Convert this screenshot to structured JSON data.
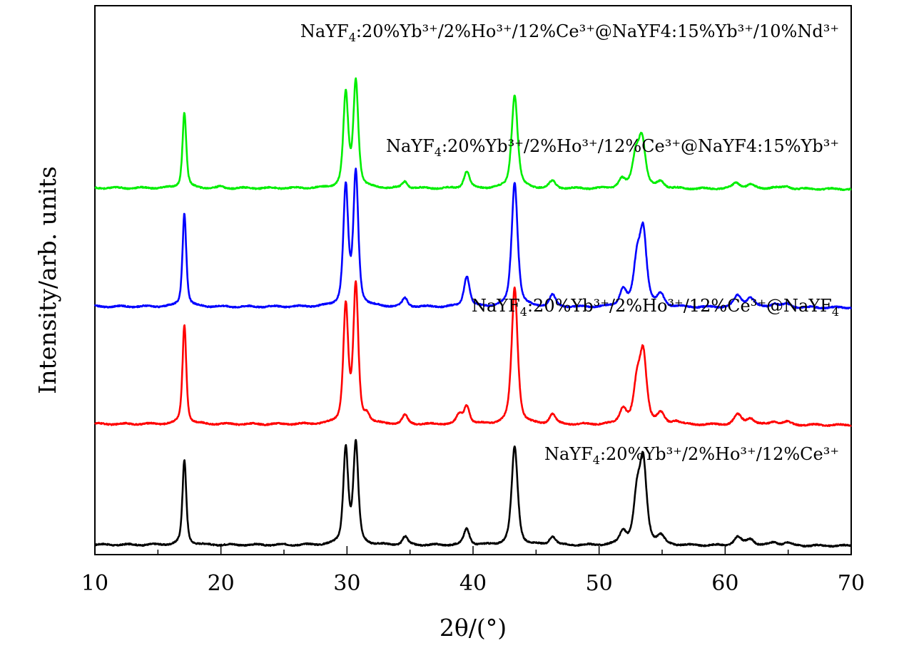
{
  "chart_data": {
    "type": "line",
    "title": "",
    "xlabel": "2θ/(°)",
    "ylabel": "Intensity/arb. units",
    "xlim": [
      10,
      70
    ],
    "ylim": [
      0,
      100
    ],
    "xticks": [
      "10",
      "20",
      "30",
      "40",
      "50",
      "60",
      "70"
    ],
    "y_ticks_shown": false,
    "grid": false,
    "legend": "text labels above each trace",
    "series": [
      {
        "label_main": "NaYF",
        "label_sub": "4",
        "label_rest": ":20%Yb³⁺/2%Ho³⁺/12%Ce³⁺",
        "color": "#000000",
        "baseline": 1.8,
        "peaks": [
          [
            17.1,
            15.5
          ],
          [
            29.9,
            17.5
          ],
          [
            30.7,
            18.2
          ],
          [
            34.6,
            1.5
          ],
          [
            39.5,
            3.0
          ],
          [
            43.3,
            18.0
          ],
          [
            46.3,
            1.6
          ],
          [
            51.9,
            2.3
          ],
          [
            53.0,
            8.3
          ],
          [
            53.5,
            14.6
          ],
          [
            54.9,
            1.5
          ],
          [
            61.0,
            1.5
          ],
          [
            62.0,
            1.2
          ],
          [
            63.9,
            0.6
          ],
          [
            64.9,
            0.5
          ]
        ]
      },
      {
        "label_main": "NaYF",
        "label_sub": "4",
        "label_rest": ":20%Yb³⁺/2%Ho³⁺/12%Ce³⁺@NaYF",
        "label_sub2": "4",
        "color": "#ff0000",
        "baseline": 23.8,
        "peaks": [
          [
            17.1,
            18.2
          ],
          [
            29.9,
            21.4
          ],
          [
            30.7,
            25.0
          ],
          [
            31.6,
            1.4
          ],
          [
            34.6,
            1.6
          ],
          [
            38.9,
            1.6
          ],
          [
            39.5,
            3.3
          ],
          [
            43.3,
            24.9
          ],
          [
            46.3,
            1.8
          ],
          [
            51.9,
            2.8
          ],
          [
            53.0,
            6.8
          ],
          [
            53.5,
            12.5
          ],
          [
            54.9,
            1.8
          ],
          [
            56.1,
            0.6
          ],
          [
            61.0,
            1.8
          ],
          [
            62.0,
            1.2
          ],
          [
            63.9,
            0.6
          ],
          [
            64.9,
            0.5
          ]
        ]
      },
      {
        "label_main": "NaYF",
        "label_sub": "4",
        "label_rest": ":20%Yb³⁺/2%Ho³⁺/12%Ce³⁺@NaYF4:15%Yb³⁺",
        "color": "#0000ff",
        "baseline": 45.2,
        "peaks": [
          [
            17.1,
            17.1
          ],
          [
            29.9,
            21.6
          ],
          [
            30.7,
            24.2
          ],
          [
            34.6,
            1.5
          ],
          [
            39.5,
            5.6
          ],
          [
            43.3,
            22.7
          ],
          [
            46.3,
            2.1
          ],
          [
            51.9,
            3.0
          ],
          [
            53.0,
            7.6
          ],
          [
            53.5,
            13.3
          ],
          [
            54.9,
            2.1
          ],
          [
            61.0,
            2.1
          ],
          [
            62.0,
            1.7
          ],
          [
            63.9,
            0.7
          ],
          [
            64.9,
            0.6
          ]
        ]
      },
      {
        "label_main": "NaYF",
        "label_sub": "4",
        "label_rest": ":20%Yb³⁺/2%Ho³⁺/12%Ce³⁺@NaYF4:15%Yb³⁺/10%Nd³⁺",
        "color": "#00ee00",
        "baseline": 66.8,
        "peaks": [
          [
            17.1,
            13.8
          ],
          [
            20.0,
            0.3
          ],
          [
            29.9,
            17.0
          ],
          [
            30.7,
            19.3
          ],
          [
            34.6,
            1.2
          ],
          [
            39.5,
            3.1
          ],
          [
            43.3,
            17.1
          ],
          [
            46.3,
            1.3
          ],
          [
            51.8,
            1.6
          ],
          [
            52.9,
            5.5
          ],
          [
            53.4,
            8.8
          ],
          [
            54.9,
            1.2
          ],
          [
            60.9,
            1.1
          ],
          [
            62.0,
            0.8
          ],
          [
            63.8,
            0.3
          ],
          [
            64.9,
            0.4
          ]
        ]
      }
    ]
  }
}
